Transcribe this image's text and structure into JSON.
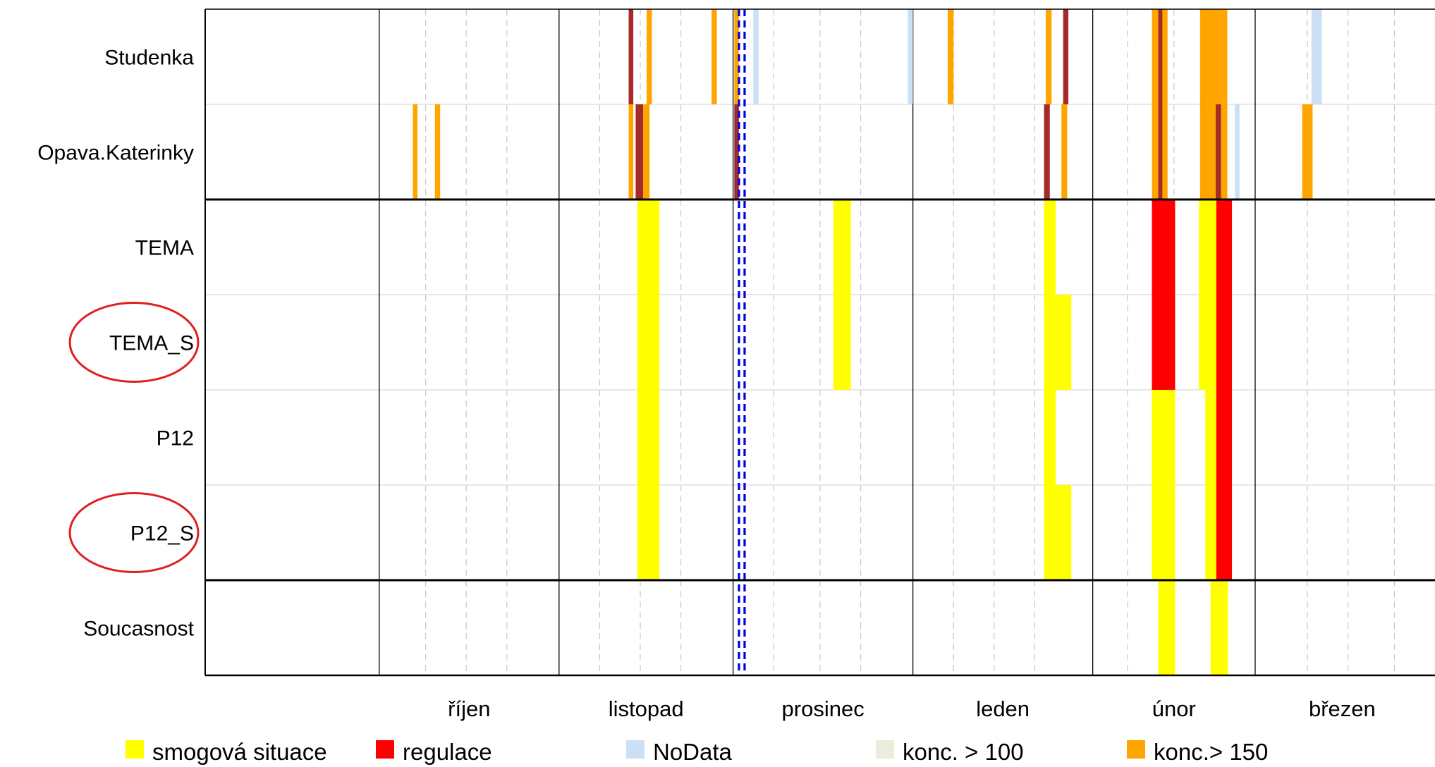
{
  "chart_data": {
    "type": "heatmap",
    "title": "",
    "xlabel": "",
    "ylabel": "",
    "x_axis": {
      "unit": "days since 1 September",
      "range": [
        0,
        212
      ],
      "month_boundaries": [
        30,
        61,
        91,
        122,
        153,
        181
      ],
      "week_lines": [
        38,
        45,
        52,
        68,
        75,
        82,
        98,
        106,
        113,
        129,
        136,
        143,
        159,
        167,
        174,
        190,
        197,
        205
      ],
      "month_labels": [
        {
          "label": "říjen",
          "center": 45.5
        },
        {
          "label": "listopad",
          "center": 76
        },
        {
          "label": "prosinec",
          "center": 106.5
        },
        {
          "label": "leden",
          "center": 137.5
        },
        {
          "label": "únor",
          "center": 167
        },
        {
          "label": "březen",
          "center": 196
        }
      ]
    },
    "rows": [
      "Studenka",
      "Opava.Katerinky",
      "TEMA",
      "TEMA_S",
      "P12",
      "P12_S",
      "Soucasnost"
    ],
    "circled_rows": [
      "TEMA_S",
      "P12_S"
    ],
    "group_separators_after_row": [
      2,
      6
    ],
    "marker_line_day": 92.5,
    "categories": [
      {
        "key": "smog",
        "label": "smogová situace",
        "color": "#ffff00"
      },
      {
        "key": "reg",
        "label": "regulace",
        "color": "#ff0000"
      },
      {
        "key": "nodata",
        "label": "NoData",
        "color": "#cce0f5"
      },
      {
        "key": "c100",
        "label": "konc. > 100",
        "color": "#ececdc"
      },
      {
        "key": "c150",
        "label": "konc.> 150",
        "color": "#ffa500"
      },
      {
        "key": "brown",
        "label": "",
        "color": "#a52a2a"
      }
    ],
    "segments": [
      {
        "row": 1,
        "start": 35.8,
        "end": 36.6,
        "cat": "c150"
      },
      {
        "row": 1,
        "start": 39.6,
        "end": 40.5,
        "cat": "c150"
      },
      {
        "row": 0,
        "start": 73,
        "end": 73.8,
        "cat": "brown"
      },
      {
        "row": 0,
        "start": 76.1,
        "end": 77,
        "cat": "c150"
      },
      {
        "row": 1,
        "start": 73,
        "end": 73.8,
        "cat": "c150"
      },
      {
        "row": 1,
        "start": 74.2,
        "end": 75.5,
        "cat": "brown"
      },
      {
        "row": 1,
        "start": 75.5,
        "end": 76.6,
        "cat": "c150"
      },
      {
        "row": 0,
        "start": 91.2,
        "end": 92,
        "cat": "c150"
      },
      {
        "row": 1,
        "start": 91.2,
        "end": 92,
        "cat": "brown"
      },
      {
        "row": 0,
        "start": 87.3,
        "end": 88.2,
        "cat": "nodata"
      },
      {
        "row": 0,
        "start": 87.3,
        "end": 88.2,
        "cat": "c150"
      },
      {
        "row": 0,
        "start": 94.5,
        "end": 95.4,
        "cat": "nodata"
      },
      {
        "row": 0,
        "start": 121.1,
        "end": 122,
        "cat": "nodata"
      },
      {
        "row": 0,
        "start": 128,
        "end": 129,
        "cat": "c150"
      },
      {
        "row": 0,
        "start": 144.9,
        "end": 145.9,
        "cat": "c150"
      },
      {
        "row": 0,
        "start": 147.9,
        "end": 148.8,
        "cat": "brown"
      },
      {
        "row": 1,
        "start": 144.6,
        "end": 145.6,
        "cat": "brown"
      },
      {
        "row": 1,
        "start": 147.6,
        "end": 148.6,
        "cat": "c150"
      },
      {
        "row": 0,
        "start": 163.2,
        "end": 165.9,
        "cat": "c150"
      },
      {
        "row": 0,
        "start": 164.3,
        "end": 165,
        "cat": "brown"
      },
      {
        "row": 1,
        "start": 163.2,
        "end": 165.9,
        "cat": "c150"
      },
      {
        "row": 1,
        "start": 164.3,
        "end": 165,
        "cat": "brown"
      },
      {
        "row": 0,
        "start": 171.5,
        "end": 176.2,
        "cat": "c150"
      },
      {
        "row": 1,
        "start": 171.5,
        "end": 176.2,
        "cat": "c150"
      },
      {
        "row": 1,
        "start": 174.2,
        "end": 175.1,
        "cat": "brown"
      },
      {
        "row": 1,
        "start": 177.5,
        "end": 178.3,
        "cat": "nodata"
      },
      {
        "row": 0,
        "start": 190.7,
        "end": 192.5,
        "cat": "nodata"
      },
      {
        "row": 1,
        "start": 189.1,
        "end": 190.9,
        "cat": "c150"
      },
      {
        "row": 2,
        "start": 74.5,
        "end": 78.3,
        "cat": "smog"
      },
      {
        "row": 3,
        "start": 74.5,
        "end": 78.3,
        "cat": "smog"
      },
      {
        "row": 4,
        "start": 74.5,
        "end": 78.3,
        "cat": "smog"
      },
      {
        "row": 5,
        "start": 74.5,
        "end": 78.3,
        "cat": "smog"
      },
      {
        "row": 2,
        "start": 110.5,
        "end": 111.3,
        "cat": "smog"
      },
      {
        "row": 3,
        "start": 110.5,
        "end": 111.3,
        "cat": "smog"
      },
      {
        "row": 2,
        "start": 108.3,
        "end": 111.3,
        "cat": "smog"
      },
      {
        "row": 3,
        "start": 108.3,
        "end": 111.3,
        "cat": "smog"
      },
      {
        "row": 2,
        "start": 144.6,
        "end": 146.6,
        "cat": "smog"
      },
      {
        "row": 3,
        "start": 144.6,
        "end": 149.3,
        "cat": "smog"
      },
      {
        "row": 4,
        "start": 144.6,
        "end": 146.6,
        "cat": "smog"
      },
      {
        "row": 5,
        "start": 144.6,
        "end": 149.3,
        "cat": "smog"
      },
      {
        "row": 2,
        "start": 163.2,
        "end": 167.2,
        "cat": "reg"
      },
      {
        "row": 3,
        "start": 163.2,
        "end": 167.2,
        "cat": "reg"
      },
      {
        "row": 4,
        "start": 163.2,
        "end": 167.2,
        "cat": "smog"
      },
      {
        "row": 5,
        "start": 163.2,
        "end": 167.2,
        "cat": "smog"
      },
      {
        "row": 2,
        "start": 171.3,
        "end": 174.3,
        "cat": "smog"
      },
      {
        "row": 3,
        "start": 171.3,
        "end": 174.3,
        "cat": "smog"
      },
      {
        "row": 2,
        "start": 174.3,
        "end": 177,
        "cat": "reg"
      },
      {
        "row": 3,
        "start": 174.3,
        "end": 177,
        "cat": "reg"
      },
      {
        "row": 4,
        "start": 172.4,
        "end": 174.3,
        "cat": "smog"
      },
      {
        "row": 5,
        "start": 172.4,
        "end": 174.3,
        "cat": "smog"
      },
      {
        "row": 4,
        "start": 174.3,
        "end": 177,
        "cat": "reg"
      },
      {
        "row": 5,
        "start": 174.3,
        "end": 177,
        "cat": "reg"
      },
      {
        "row": 6,
        "start": 164.3,
        "end": 167.2,
        "cat": "smog"
      },
      {
        "row": 6,
        "start": 173.3,
        "end": 176.3,
        "cat": "smog"
      }
    ],
    "legend": {
      "placement": "bottom",
      "entries": [
        {
          "label": "smogová situace",
          "cat": "smog"
        },
        {
          "label": "regulace",
          "cat": "reg"
        },
        {
          "label": "NoData",
          "cat": "nodata"
        },
        {
          "label": "konc. > 100",
          "cat": "c100"
        },
        {
          "label": "konc.> 150",
          "cat": "c150"
        }
      ]
    }
  }
}
